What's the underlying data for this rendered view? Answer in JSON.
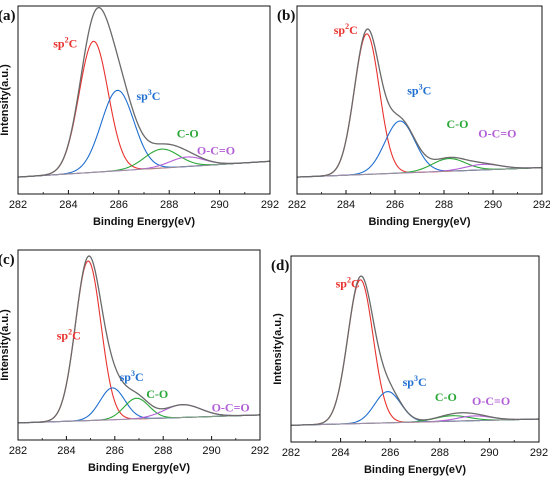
{
  "chart_data": [
    {
      "type": "line",
      "panel": "(a)",
      "xlabel": "Binding Energy(eV)",
      "ylabel": "Intensity(a.u.)",
      "xlim": [
        282,
        292
      ],
      "ylim": [
        0,
        1
      ],
      "xticks": [
        282,
        284,
        286,
        288,
        290,
        292
      ],
      "series": [
        {
          "label": "sp²C",
          "label_main": "sp",
          "label_sup": "2",
          "label_tail": "C",
          "color": "#e8322f",
          "peak": {
            "center": 285.0,
            "height": 0.83,
            "width": 0.68
          }
        },
        {
          "label": "sp³C",
          "label_main": "sp",
          "label_sup": "3",
          "label_tail": "C",
          "color": "#1f6fd0",
          "peak": {
            "center": 285.95,
            "height": 0.51,
            "width": 0.76
          }
        },
        {
          "label": "C-O",
          "label_main": "C-O",
          "label_sup": "",
          "label_tail": "",
          "color": "#2aa838",
          "peak": {
            "center": 287.7,
            "height": 0.12,
            "width": 0.8
          }
        },
        {
          "label": "O-C=O",
          "label_main": "O-C=O",
          "label_sup": "",
          "label_tail": "",
          "color": "#b35fd6",
          "peak": {
            "center": 288.7,
            "height": 0.06,
            "width": 0.8
          }
        }
      ],
      "background": {
        "start": 0.0,
        "end": 0.1
      },
      "envelope": {
        "color": "#6a6a6a"
      }
    },
    {
      "type": "line",
      "panel": "(b)",
      "xlabel": "Binding Energy(eV)",
      "ylabel": "",
      "xlim": [
        282,
        292
      ],
      "ylim": [
        0,
        1
      ],
      "xticks": [
        282,
        284,
        286,
        288,
        290,
        292
      ],
      "series": [
        {
          "label": "sp²C",
          "label_main": "sp",
          "label_sup": "2",
          "label_tail": "C",
          "color": "#e8322f",
          "peak": {
            "center": 284.85,
            "height": 0.89,
            "width": 0.6
          }
        },
        {
          "label": "sp³C",
          "label_main": "sp",
          "label_sup": "3",
          "label_tail": "C",
          "color": "#1f6fd0",
          "peak": {
            "center": 286.2,
            "height": 0.33,
            "width": 0.72
          }
        },
        {
          "label": "C-O",
          "label_main": "C-O",
          "label_sup": "",
          "label_tail": "",
          "color": "#2aa838",
          "peak": {
            "center": 288.2,
            "height": 0.08,
            "width": 0.8
          }
        },
        {
          "label": "O-C=O",
          "label_main": "O-C=O",
          "label_sup": "",
          "label_tail": "",
          "color": "#b35fd6",
          "peak": {
            "center": 289.6,
            "height": 0.035,
            "width": 0.85
          }
        }
      ],
      "background": {
        "start": 0.0,
        "end": 0.06
      },
      "envelope": {
        "color": "#6a6a6a"
      }
    },
    {
      "type": "line",
      "panel": "(c)",
      "xlabel": "Binding Energy(eV)",
      "ylabel": "Intensity(a.u.)",
      "xlim": [
        282,
        292
      ],
      "ylim": [
        0,
        1
      ],
      "xticks": [
        282,
        284,
        286,
        288,
        290,
        292
      ],
      "series": [
        {
          "label": "sp²C",
          "label_main": "sp",
          "label_sup": "2",
          "label_tail": "C",
          "color": "#e8322f",
          "peak": {
            "center": 284.9,
            "height": 1.0,
            "width": 0.62
          }
        },
        {
          "label": "sp³C",
          "label_main": "sp",
          "label_sup": "3",
          "label_tail": "C",
          "color": "#1f6fd0",
          "peak": {
            "center": 285.9,
            "height": 0.2,
            "width": 0.6
          }
        },
        {
          "label": "C-O",
          "label_main": "C-O",
          "label_sup": "",
          "label_tail": "",
          "color": "#2aa838",
          "peak": {
            "center": 286.9,
            "height": 0.13,
            "width": 0.6
          }
        },
        {
          "label": "O-C=O",
          "label_main": "O-C=O",
          "label_sup": "",
          "label_tail": "",
          "color": "#b35fd6",
          "peak": {
            "center": 288.8,
            "height": 0.08,
            "width": 0.9
          }
        }
      ],
      "background": {
        "start": 0.0,
        "end": 0.05
      },
      "envelope": {
        "color": "#6a6a6a"
      }
    },
    {
      "type": "line",
      "panel": "(d)",
      "xlabel": "Binding Energy(eV)",
      "ylabel": "Intensity(a.u.)",
      "xlim": [
        282,
        292
      ],
      "ylim": [
        0,
        1
      ],
      "xticks": [
        282,
        284,
        286,
        288,
        290,
        292
      ],
      "series": [
        {
          "label": "sp²C",
          "label_main": "sp",
          "label_sup": "2",
          "label_tail": "C",
          "color": "#e8322f",
          "peak": {
            "center": 284.8,
            "height": 0.92,
            "width": 0.6
          }
        },
        {
          "label": "sp³C",
          "label_main": "sp",
          "label_sup": "3",
          "label_tail": "C",
          "color": "#1f6fd0",
          "peak": {
            "center": 285.9,
            "height": 0.2,
            "width": 0.62
          }
        },
        {
          "label": "C-O",
          "label_main": "C-O",
          "label_sup": "",
          "label_tail": "",
          "color": "#2aa838",
          "peak": {
            "center": 288.5,
            "height": 0.035,
            "width": 0.8
          }
        },
        {
          "label": "O-C=O",
          "label_main": "O-C=O",
          "label_sup": "",
          "label_tail": "",
          "color": "#b35fd6",
          "peak": {
            "center": 289.4,
            "height": 0.03,
            "width": 0.8
          }
        }
      ],
      "background": {
        "start": 0.0,
        "end": 0.04
      },
      "envelope": {
        "color": "#6a6a6a"
      }
    }
  ]
}
